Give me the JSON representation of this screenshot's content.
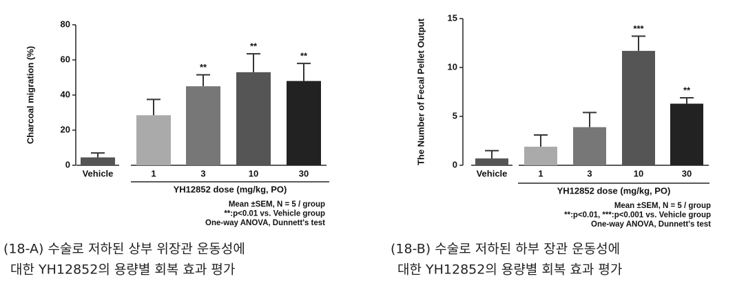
{
  "chart_data": [
    {
      "type": "bar",
      "y_label": "Charcoal migration (%)",
      "categories": [
        "Vehicle",
        "1",
        "3",
        "10",
        "30"
      ],
      "values": [
        4.5,
        28.5,
        45,
        53,
        48
      ],
      "errors": [
        2.5,
        9,
        6.5,
        10.5,
        10
      ],
      "significance": [
        null,
        null,
        "**",
        "**",
        "**"
      ],
      "colors": [
        "#555555",
        "#aaaaaa",
        "#777777",
        "#555555",
        "#222222"
      ],
      "ylim": [
        0,
        80
      ],
      "yticks": [
        0,
        20,
        40,
        60,
        80
      ],
      "group_label": "YH12852 dose (mg/kg, PO)",
      "notes": [
        "Mean ±SEM, N = 5 / group",
        "**:p<0.01 vs. Vehicle group",
        "One-way ANOVA, Dunnett's test"
      ],
      "caption": [
        "(18-A) 수술로 저하된 상부 위장관 운동성에",
        "대한 YH12852의 용량별 회복 효과 평가"
      ]
    },
    {
      "type": "bar",
      "y_label": "The Number of Fecal Pellet Output",
      "categories": [
        "Vehicle",
        "1",
        "3",
        "10",
        "30"
      ],
      "values": [
        0.7,
        1.9,
        3.9,
        11.7,
        6.3
      ],
      "errors": [
        0.8,
        1.2,
        1.5,
        1.5,
        0.6
      ],
      "significance": [
        null,
        null,
        null,
        "***",
        "**"
      ],
      "colors": [
        "#555555",
        "#aaaaaa",
        "#777777",
        "#555555",
        "#222222"
      ],
      "ylim": [
        0,
        15
      ],
      "yticks": [
        0,
        5,
        10,
        15
      ],
      "group_label": "YH12852 dose (mg/kg, PO)",
      "notes": [
        "Mean ±SEM, N = 5 / group",
        "**:p<0.01, ***:p<0.001 vs. Vehicle group",
        "One-way ANOVA, Dunnett's test"
      ],
      "caption": [
        "(18-B) 수술로 저하된 하부 장관 운동성에",
        "대한 YH12852의 용량별 회복 효과 평가"
      ]
    }
  ]
}
